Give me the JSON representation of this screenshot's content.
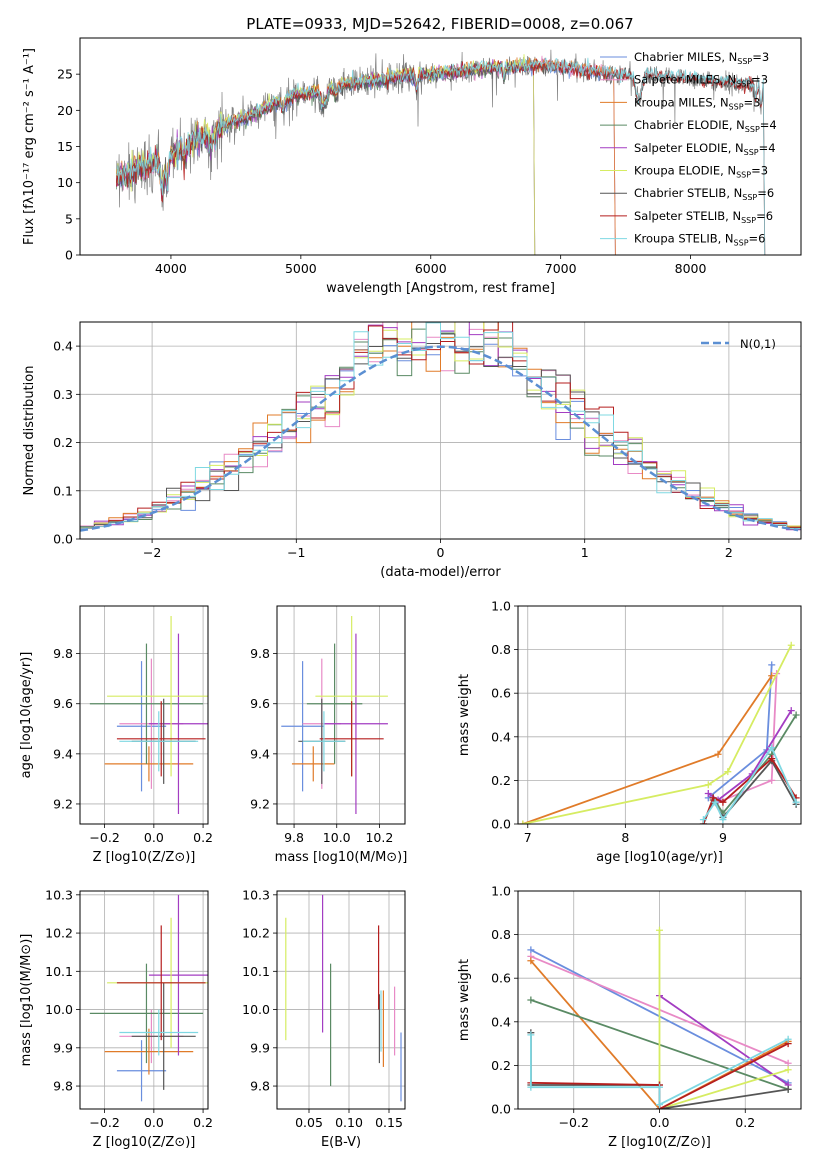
{
  "title": "PLATE=0933, MJD=52642, FIBERID=0008, z=0.067",
  "colors": {
    "Chabrier MILES": "#6a8ede",
    "Salpeter MILES": "#e88ac6",
    "Kroupa MILES": "#e07b29",
    "Chabrier ELODIE": "#5a8a64",
    "Salpeter ELODIE": "#a33dc2",
    "Kroupa ELODIE": "#d6ec62",
    "Chabrier STELIB": "#555555",
    "Salpeter STELIB": "#b51e1e",
    "Kroupa STELIB": "#7fd8e2"
  },
  "chart_data": [
    {
      "id": "spectrum",
      "type": "line",
      "xlabel": "wavelength [Angstrom, rest frame]",
      "ylabel": "Flux [fλ10⁻¹⁷ erg cm⁻² s⁻¹ A⁻¹]",
      "xlim": [
        3300,
        8850
      ],
      "ylim": [
        0,
        30
      ],
      "xticks": [
        4000,
        5000,
        6000,
        7000,
        8000
      ],
      "yticks": [
        0,
        5,
        10,
        15,
        20,
        25
      ],
      "grid": false,
      "legend_position": "top-right",
      "continuum": [
        [
          3580,
          10.5
        ],
        [
          3650,
          11.0
        ],
        [
          3750,
          12.0
        ],
        [
          3850,
          12.5
        ],
        [
          3950,
          13.5
        ],
        [
          4050,
          14.5
        ],
        [
          4150,
          15.5
        ],
        [
          4250,
          16.5
        ],
        [
          4350,
          17.5
        ],
        [
          4500,
          18.5
        ],
        [
          4650,
          19.5
        ],
        [
          4800,
          21.0
        ],
        [
          4950,
          22.0
        ],
        [
          5100,
          22.5
        ],
        [
          5250,
          23.0
        ],
        [
          5400,
          23.8
        ],
        [
          5600,
          24.2
        ],
        [
          5800,
          24.8
        ],
        [
          6000,
          25.0
        ],
        [
          6200,
          25.3
        ],
        [
          6400,
          25.8
        ],
        [
          6600,
          26.0
        ],
        [
          6800,
          26.2
        ],
        [
          7000,
          26.0
        ],
        [
          7200,
          25.5
        ],
        [
          7400,
          25.0
        ],
        [
          7600,
          24.8
        ],
        [
          7800,
          24.6
        ],
        [
          8000,
          24.5
        ],
        [
          8200,
          24.0
        ],
        [
          8400,
          23.6
        ],
        [
          8560,
          23.5
        ]
      ],
      "series": [
        {
          "name": "Chabrier MILES, N_SSP=3",
          "end_x": 7410
        },
        {
          "name": "Salpeter MILES, N_SSP=3",
          "end_x": 7410
        },
        {
          "name": "Kroupa MILES, N_SSP=3",
          "end_x": 7410
        },
        {
          "name": "Chabrier ELODIE, N_SSP=4",
          "end_x": 6790
        },
        {
          "name": "Salpeter ELODIE, N_SSP=4",
          "end_x": 6790
        },
        {
          "name": "Kroupa ELODIE, N_SSP=3",
          "end_x": 6790
        },
        {
          "name": "Chabrier STELIB, N_SSP=6",
          "end_x": 8560
        },
        {
          "name": "Salpeter STELIB, N_SSP=6",
          "end_x": 8560
        },
        {
          "name": "Kroupa STELIB, N_SSP=6",
          "end_x": 8560
        }
      ]
    },
    {
      "id": "residuals",
      "type": "line",
      "xlabel": "(data-model)/error",
      "ylabel": "Normed distribution",
      "xlim": [
        -2.5,
        2.5
      ],
      "ylim": [
        0,
        0.45
      ],
      "xticks": [
        -2,
        -1,
        0,
        1,
        2
      ],
      "yticks": [
        0.0,
        0.1,
        0.2,
        0.3,
        0.4
      ],
      "grid": true,
      "legend_position": "top-right",
      "reference_curve": {
        "name": "N(0,1)",
        "mu": 0,
        "sigma": 1
      },
      "bin_width": 0.1
    },
    {
      "id": "age_vs_Z",
      "type": "scatter",
      "xlabel": "Z [log10(Z/Z⊙)]",
      "ylabel": "age  [log10(age/yr)]",
      "xlim": [
        -0.3,
        0.22
      ],
      "ylim": [
        9.12,
        9.99
      ],
      "xticks": [
        -0.2,
        0.0,
        0.2
      ],
      "yticks": [
        9.2,
        9.4,
        9.6,
        9.8
      ],
      "grid": true,
      "points": [
        {
          "model": "Chabrier MILES",
          "x": -0.05,
          "xerr": 0.1,
          "y": 9.51,
          "yerr": 0.26
        },
        {
          "model": "Salpeter MILES",
          "x": -0.01,
          "xerr": 0.13,
          "y": 9.52,
          "yerr": 0.26
        },
        {
          "model": "Kroupa MILES",
          "x": -0.02,
          "xerr": 0.18,
          "y": 9.36,
          "yerr": 0.07
        },
        {
          "model": "Chabrier ELODIE",
          "x": -0.03,
          "xerr": 0.23,
          "y": 9.6,
          "yerr": 0.24
        },
        {
          "model": "Salpeter ELODIE",
          "x": 0.1,
          "xerr": 0.12,
          "y": 9.52,
          "yerr": 0.36
        },
        {
          "model": "Kroupa ELODIE",
          "x": 0.07,
          "xerr": 0.26,
          "y": 9.63,
          "yerr": 0.32
        },
        {
          "model": "Chabrier STELIB",
          "x": 0.04,
          "xerr": 0.13,
          "y": 9.45,
          "yerr": 0.17
        },
        {
          "model": "Salpeter STELIB",
          "x": 0.03,
          "xerr": 0.18,
          "y": 9.46,
          "yerr": 0.15
        },
        {
          "model": "Kroupa STELIB",
          "x": 0.02,
          "xerr": 0.16,
          "y": 9.45,
          "yerr": 0.12
        }
      ]
    },
    {
      "id": "age_vs_mass",
      "type": "scatter",
      "xlabel": "mass [log10(M/M⊙)]",
      "ylabel": "",
      "xlim": [
        9.72,
        10.32
      ],
      "ylim": [
        9.12,
        9.99
      ],
      "xticks": [
        9.8,
        10.0,
        10.2
      ],
      "yticks": [
        9.2,
        9.4,
        9.6,
        9.8
      ],
      "grid": true,
      "points": [
        {
          "model": "Chabrier MILES",
          "x": 9.84,
          "xerr": 0.1,
          "y": 9.51,
          "yerr": 0.26
        },
        {
          "model": "Salpeter MILES",
          "x": 9.93,
          "xerr": 0.09,
          "y": 9.52,
          "yerr": 0.26
        },
        {
          "model": "Kroupa MILES",
          "x": 9.89,
          "xerr": 0.1,
          "y": 9.36,
          "yerr": 0.07
        },
        {
          "model": "Chabrier ELODIE",
          "x": 9.99,
          "xerr": 0.13,
          "y": 9.6,
          "yerr": 0.24
        },
        {
          "model": "Salpeter ELODIE",
          "x": 10.09,
          "xerr": 0.15,
          "y": 9.52,
          "yerr": 0.36
        },
        {
          "model": "Kroupa ELODIE",
          "x": 10.07,
          "xerr": 0.17,
          "y": 9.63,
          "yerr": 0.32
        },
        {
          "model": "Chabrier STELIB",
          "x": 9.93,
          "xerr": 0.11,
          "y": 9.45,
          "yerr": 0.17
        },
        {
          "model": "Salpeter STELIB",
          "x": 10.07,
          "xerr": 0.15,
          "y": 9.46,
          "yerr": 0.15
        },
        {
          "model": "Kroupa STELIB",
          "x": 9.94,
          "xerr": 0.1,
          "y": 9.45,
          "yerr": 0.12
        }
      ]
    },
    {
      "id": "weight_vs_age",
      "type": "line",
      "xlabel": "age  [log10(age/yr)]",
      "ylabel": "mass weight",
      "xlim": [
        6.9,
        9.8
      ],
      "ylim": [
        0,
        1
      ],
      "xticks": [
        7,
        8,
        9
      ],
      "yticks": [
        0.0,
        0.2,
        0.4,
        0.6,
        0.8,
        1.0
      ],
      "grid": true,
      "series": [
        {
          "model": "Chabrier MILES",
          "x": [
            8.85,
            9.45,
            9.5
          ],
          "y": [
            0.12,
            0.34,
            0.73
          ]
        },
        {
          "model": "Salpeter MILES",
          "x": [
            8.95,
            9.5,
            9.55
          ],
          "y": [
            0.1,
            0.2,
            0.69
          ]
        },
        {
          "model": "Kroupa MILES",
          "x": [
            6.95,
            8.95,
            9.5
          ],
          "y": [
            0.0,
            0.32,
            0.68
          ]
        },
        {
          "model": "Chabrier ELODIE",
          "x": [
            8.9,
            9.0,
            9.5,
            9.75
          ],
          "y": [
            0.12,
            0.05,
            0.32,
            0.5
          ]
        },
        {
          "model": "Salpeter ELODIE",
          "x": [
            8.85,
            8.95,
            9.3,
            9.7
          ],
          "y": [
            0.14,
            0.11,
            0.23,
            0.52
          ]
        },
        {
          "model": "Kroupa ELODIE",
          "x": [
            6.95,
            8.85,
            9.05,
            9.7
          ],
          "y": [
            0.0,
            0.18,
            0.24,
            0.82
          ]
        },
        {
          "model": "Chabrier STELIB",
          "x": [
            8.8,
            8.9,
            9.0,
            9.5,
            9.75
          ],
          "y": [
            0.0,
            0.11,
            0.03,
            0.29,
            0.09
          ]
        },
        {
          "model": "Salpeter STELIB",
          "x": [
            8.8,
            8.9,
            9.0,
            9.5,
            9.75
          ],
          "y": [
            0.0,
            0.12,
            0.1,
            0.3,
            0.12
          ]
        },
        {
          "model": "Kroupa STELIB",
          "x": [
            8.8,
            8.92,
            9.0,
            9.5,
            9.75
          ],
          "y": [
            0.02,
            0.1,
            0.02,
            0.35,
            0.1
          ]
        }
      ]
    },
    {
      "id": "mass_vs_Z",
      "type": "scatter",
      "xlabel": "Z [log10(Z/Z⊙)]",
      "ylabel": "mass [log10(M/M⊙)]",
      "xlim": [
        -0.3,
        0.22
      ],
      "ylim": [
        9.74,
        10.31
      ],
      "xticks": [
        -0.2,
        0.0,
        0.2
      ],
      "yticks": [
        9.8,
        9.9,
        10.0,
        10.1,
        10.2,
        10.3
      ],
      "grid": true,
      "points": [
        {
          "model": "Chabrier MILES",
          "x": -0.05,
          "xerr": 0.1,
          "y": 9.84,
          "yerr": 0.08
        },
        {
          "model": "Salpeter MILES",
          "x": -0.01,
          "xerr": 0.13,
          "y": 9.93,
          "yerr": 0.07
        },
        {
          "model": "Kroupa MILES",
          "x": -0.02,
          "xerr": 0.18,
          "y": 9.89,
          "yerr": 0.06
        },
        {
          "model": "Chabrier ELODIE",
          "x": -0.03,
          "xerr": 0.23,
          "y": 9.99,
          "yerr": 0.13
        },
        {
          "model": "Salpeter ELODIE",
          "x": 0.1,
          "xerr": 0.12,
          "y": 10.09,
          "yerr": 0.21
        },
        {
          "model": "Kroupa ELODIE",
          "x": 0.07,
          "xerr": 0.26,
          "y": 10.07,
          "yerr": 0.17
        },
        {
          "model": "Chabrier STELIB",
          "x": 0.04,
          "xerr": 0.13,
          "y": 9.93,
          "yerr": 0.14
        },
        {
          "model": "Salpeter STELIB",
          "x": 0.03,
          "xerr": 0.18,
          "y": 10.07,
          "yerr": 0.15
        },
        {
          "model": "Kroupa STELIB",
          "x": 0.02,
          "xerr": 0.16,
          "y": 9.94,
          "yerr": 0.06
        }
      ]
    },
    {
      "id": "mass_vs_ebv",
      "type": "scatter",
      "xlabel": "E(B-V)",
      "ylabel": "",
      "xlim": [
        0.01,
        0.17
      ],
      "ylim": [
        9.74,
        10.31
      ],
      "xticks": [
        0.05,
        0.1,
        0.15
      ],
      "yticks": [
        9.8,
        9.9,
        10.0,
        10.1,
        10.2,
        10.3
      ],
      "grid": true,
      "points": [
        {
          "model": "Chabrier MILES",
          "x": 0.165,
          "y": 9.85,
          "yerr": 0.09
        },
        {
          "model": "Salpeter MILES",
          "x": 0.157,
          "y": 9.97,
          "yerr": 0.09
        },
        {
          "model": "Kroupa MILES",
          "x": 0.143,
          "y": 9.95,
          "yerr": 0.1
        },
        {
          "model": "Chabrier ELODIE",
          "x": 0.077,
          "y": 9.96,
          "yerr": 0.16
        },
        {
          "model": "Salpeter ELODIE",
          "x": 0.067,
          "y": 10.12,
          "yerr": 0.18
        },
        {
          "model": "Kroupa ELODIE",
          "x": 0.021,
          "y": 10.08,
          "yerr": 0.16
        },
        {
          "model": "Chabrier STELIB",
          "x": 0.138,
          "y": 9.95,
          "yerr": 0.09
        },
        {
          "model": "Salpeter STELIB",
          "x": 0.137,
          "y": 10.11,
          "yerr": 0.11
        },
        {
          "model": "Kroupa STELIB",
          "x": 0.14,
          "y": 9.97,
          "yerr": 0.08
        }
      ]
    },
    {
      "id": "weight_vs_Z",
      "type": "line",
      "xlabel": "Z [log10(Z/Z⊙)]",
      "ylabel": "mass weight",
      "xlim": [
        -0.33,
        0.33
      ],
      "ylim": [
        0,
        1
      ],
      "xticks": [
        -0.2,
        0.0,
        0.2
      ],
      "yticks": [
        0.0,
        0.2,
        0.4,
        0.6,
        0.8,
        1.0
      ],
      "grid": true,
      "series": [
        {
          "model": "Chabrier MILES",
          "x": [
            -0.3,
            0.3
          ],
          "y": [
            0.73,
            0.12
          ]
        },
        {
          "model": "Salpeter MILES",
          "x": [
            -0.3,
            0.3
          ],
          "y": [
            0.7,
            0.21
          ]
        },
        {
          "model": "Kroupa MILES",
          "x": [
            -0.3,
            0.0,
            0.3
          ],
          "y": [
            0.68,
            0.0,
            0.31
          ]
        },
        {
          "model": "Chabrier ELODIE",
          "x": [
            -0.3,
            0.3
          ],
          "y": [
            0.5,
            0.09
          ]
        },
        {
          "model": "Salpeter ELODIE",
          "x": [
            0.0,
            0.3
          ],
          "y": [
            0.52,
            0.11
          ]
        },
        {
          "model": "Kroupa ELODIE",
          "x": [
            0.0,
            0.0,
            0.3
          ],
          "y": [
            0.82,
            0.0,
            0.18
          ]
        },
        {
          "model": "Chabrier STELIB",
          "x": [
            -0.3,
            -0.3,
            0.0,
            0.0,
            0.3
          ],
          "y": [
            0.35,
            0.11,
            0.11,
            0.0,
            0.09
          ]
        },
        {
          "model": "Salpeter STELIB",
          "x": [
            -0.3,
            0.0,
            0.0,
            0.3
          ],
          "y": [
            0.12,
            0.11,
            0.0,
            0.3
          ]
        },
        {
          "model": "Kroupa STELIB",
          "x": [
            -0.3,
            -0.3,
            0.0,
            0.0,
            0.3
          ],
          "y": [
            0.34,
            0.1,
            0.1,
            0.02,
            0.32
          ]
        }
      ]
    }
  ]
}
